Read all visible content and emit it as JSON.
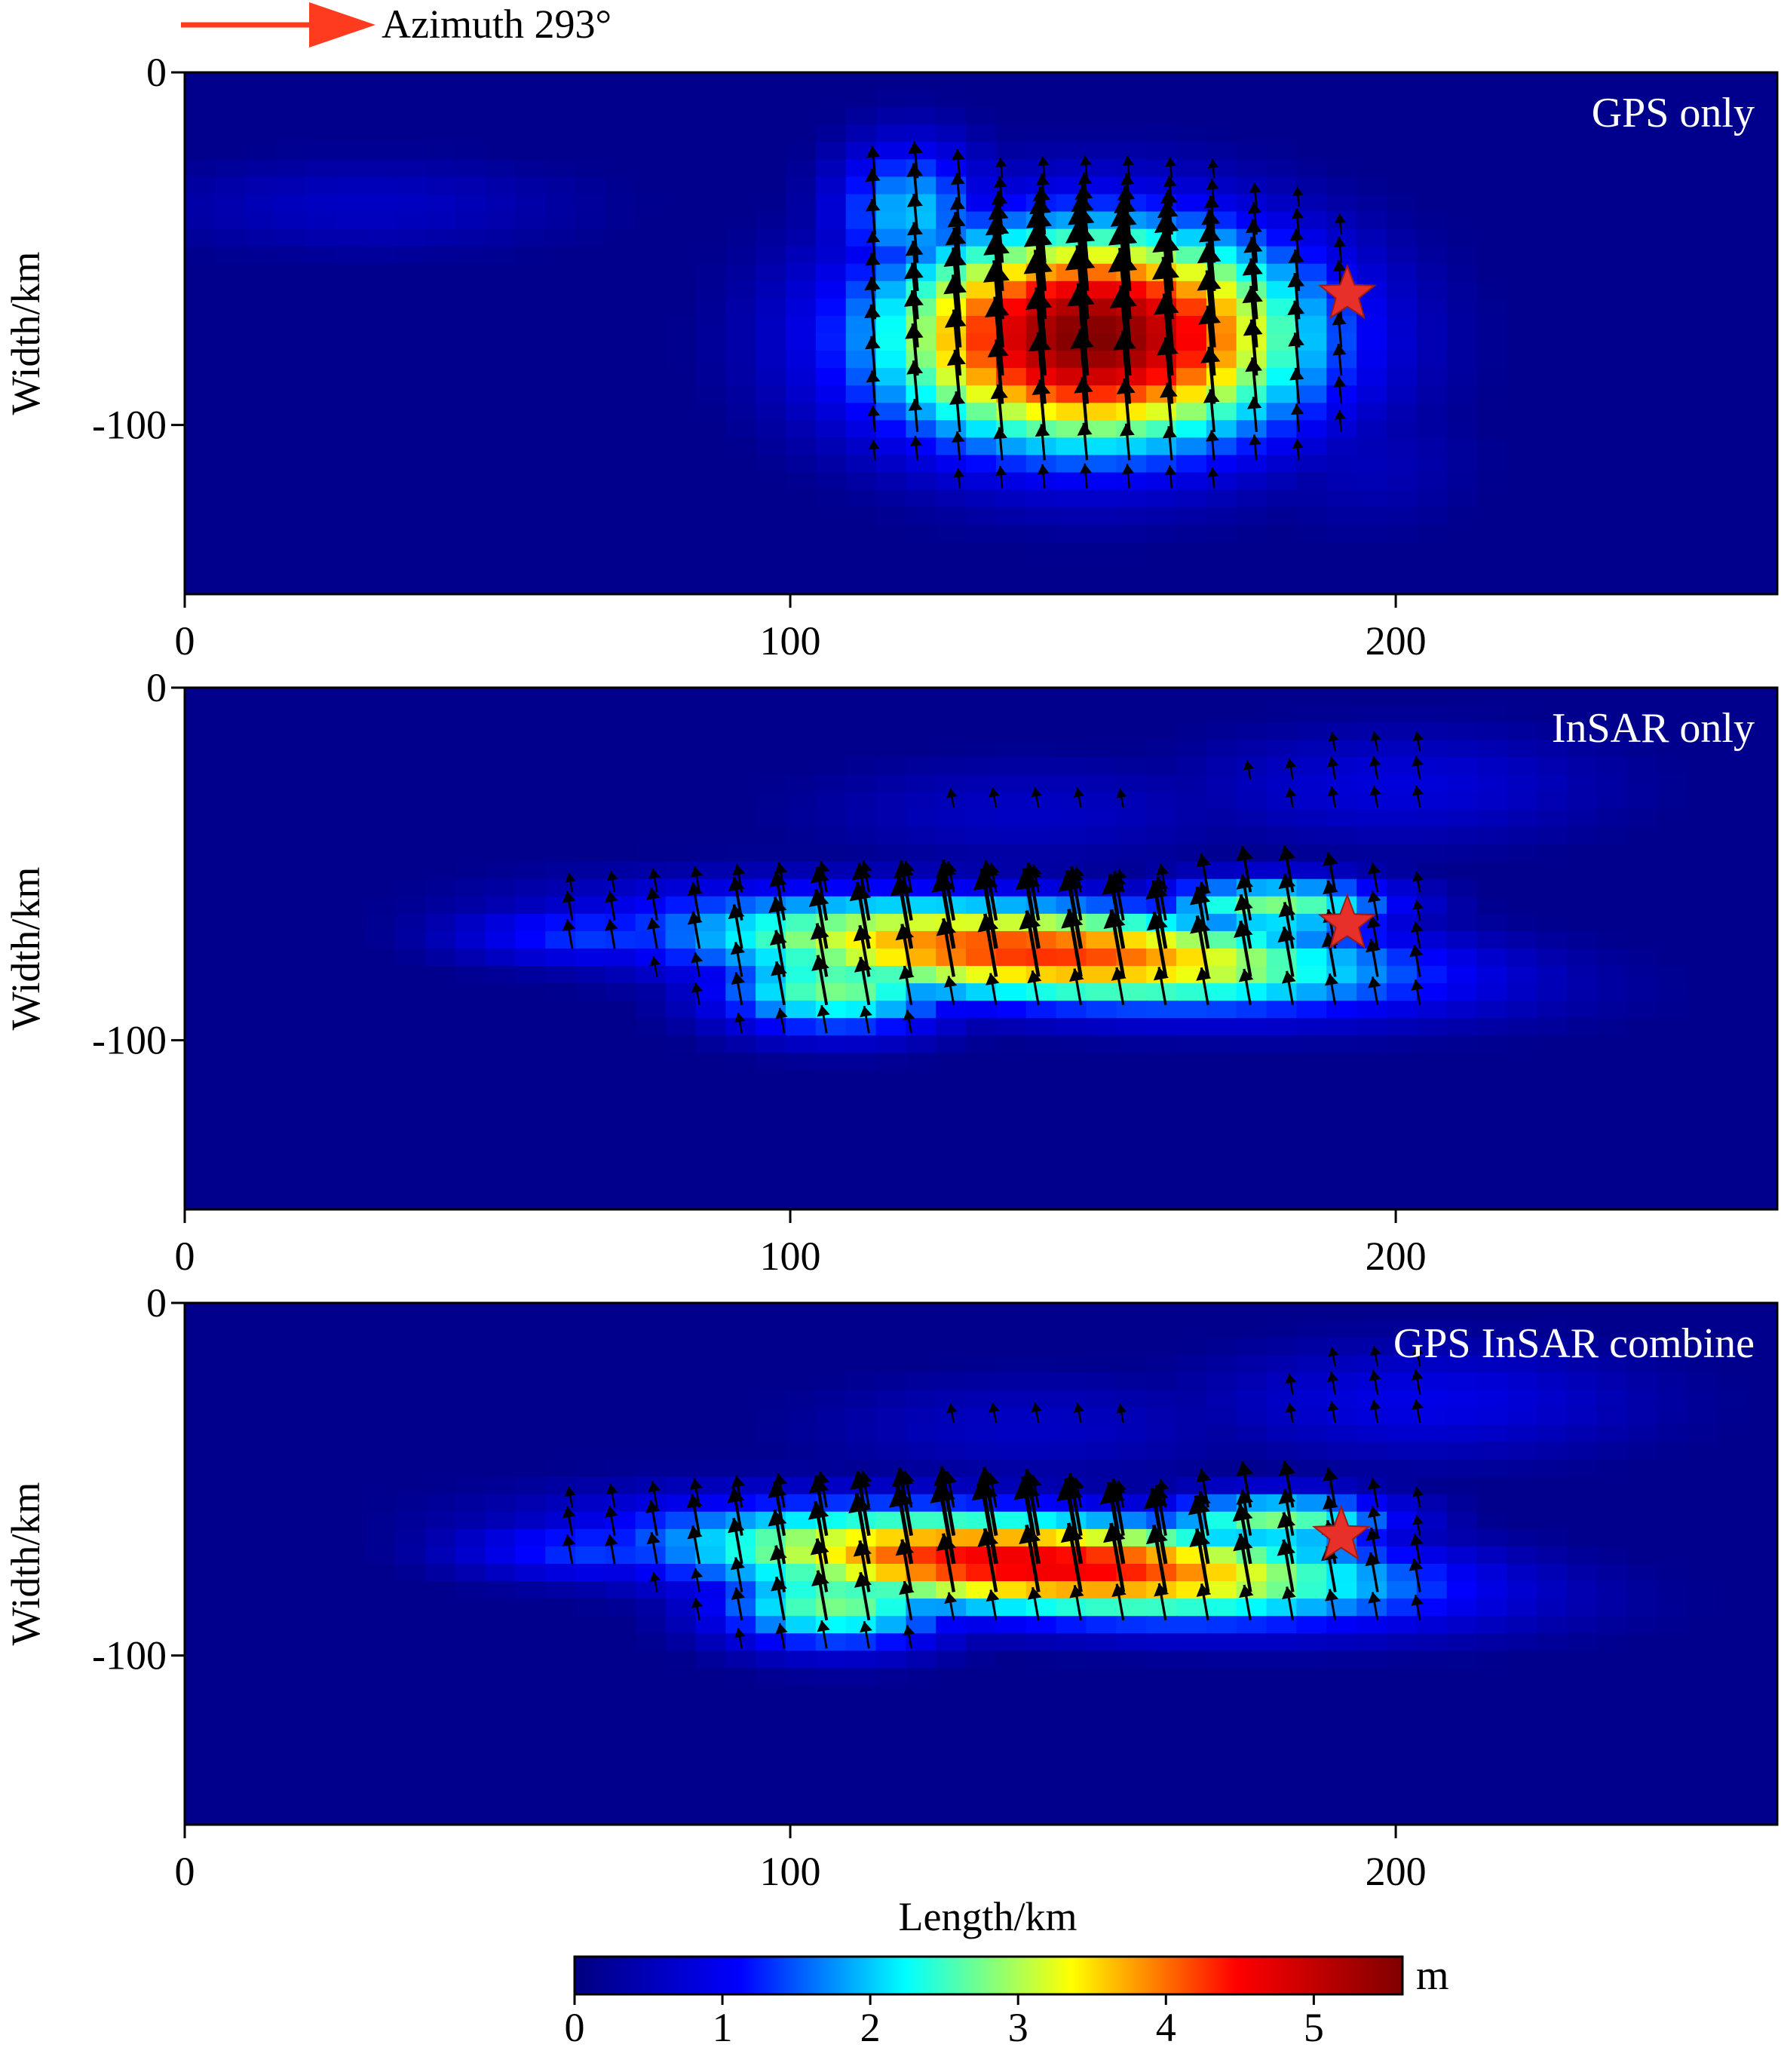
{
  "figure": {
    "azimuth_label": "Azimuth 293°",
    "x_label": "Length/km",
    "colorbar": {
      "unit": "m",
      "min": 0,
      "max": 5.6,
      "ticks": [
        0,
        1,
        2,
        3,
        4,
        5
      ],
      "colormap": [
        "#00007f",
        "#0000ff",
        "#00ffff",
        "#ffff00",
        "#ff0000",
        "#7f0000"
      ]
    },
    "colors": {
      "background": "#00008b",
      "arrow": "#000000",
      "star": "#e8302a",
      "azimuth_arrow": "#ff3b1f"
    }
  },
  "chart_data": [
    {
      "type": "heatmap",
      "title": "GPS only",
      "xlabel": "",
      "ylabel": "Width/km",
      "xlim": [
        0,
        263
      ],
      "ylim": [
        -148,
        0
      ],
      "xticks": [
        0,
        100,
        200
      ],
      "yticks": [
        0,
        -100
      ],
      "epicenter": [
        192,
        -63
      ],
      "slip_patches": [
        {
          "x": 150,
          "y": -75,
          "rx": 37,
          "ry": 33,
          "peak": 5.6,
          "rot": 0
        },
        {
          "x": 120,
          "y": -40,
          "rx": 14,
          "ry": 22,
          "peak": 2.0,
          "rot": 0
        },
        {
          "x": 30,
          "y": -38,
          "rx": 40,
          "ry": 15,
          "peak": 0.6,
          "rot": 0
        },
        {
          "x": 195,
          "y": -110,
          "rx": 20,
          "ry": 22,
          "peak": 0.5,
          "rot": 0
        }
      ],
      "arrow_region": {
        "x0": 114,
        "x1": 191,
        "y0": -30,
        "y1": -130
      },
      "rake_deg": 95
    },
    {
      "type": "heatmap",
      "title": "InSAR only",
      "xlabel": "",
      "ylabel": "Width/km",
      "xlim": [
        0,
        263
      ],
      "ylim": [
        -148,
        0
      ],
      "xticks": [
        0,
        100,
        200
      ],
      "yticks": [
        0,
        -100
      ],
      "epicenter": [
        192,
        -67
      ],
      "slip_patches": [
        {
          "x": 140,
          "y": -75,
          "rx": 62,
          "ry": 15,
          "peak": 4.3,
          "rot": -6
        },
        {
          "x": 108,
          "y": -85,
          "rx": 22,
          "ry": 14,
          "peak": 2.8,
          "rot": 0
        },
        {
          "x": 180,
          "y": -62,
          "rx": 22,
          "ry": 9,
          "peak": 2.8,
          "rot": 0
        },
        {
          "x": 68,
          "y": -70,
          "rx": 26,
          "ry": 10,
          "peak": 1.4,
          "rot": 0
        },
        {
          "x": 200,
          "y": -28,
          "rx": 38,
          "ry": 18,
          "peak": 0.8,
          "rot": 0
        },
        {
          "x": 140,
          "y": -35,
          "rx": 40,
          "ry": 16,
          "peak": 0.6,
          "rot": 0
        }
      ],
      "arrow_region": {
        "x0": 64,
        "x1": 210,
        "y0": -10,
        "y1": -135
      },
      "rake_deg": 100
    },
    {
      "type": "heatmap",
      "title": "GPS InSAR combine",
      "xlabel": "Length/km",
      "ylabel": "Width/km",
      "xlim": [
        0,
        263
      ],
      "ylim": [
        -148,
        0
      ],
      "xticks": [
        0,
        100,
        200
      ],
      "yticks": [
        0,
        -100
      ],
      "epicenter": [
        191,
        -66
      ],
      "slip_patches": [
        {
          "x": 140,
          "y": -74,
          "rx": 62,
          "ry": 15,
          "peak": 4.7,
          "rot": -6
        },
        {
          "x": 108,
          "y": -85,
          "rx": 22,
          "ry": 14,
          "peak": 2.8,
          "rot": 0
        },
        {
          "x": 180,
          "y": -62,
          "rx": 22,
          "ry": 9,
          "peak": 2.8,
          "rot": 0
        },
        {
          "x": 68,
          "y": -70,
          "rx": 26,
          "ry": 10,
          "peak": 1.4,
          "rot": 0
        },
        {
          "x": 205,
          "y": -28,
          "rx": 40,
          "ry": 18,
          "peak": 0.9,
          "rot": 0
        },
        {
          "x": 140,
          "y": -35,
          "rx": 40,
          "ry": 16,
          "peak": 0.6,
          "rot": 0
        }
      ],
      "arrow_region": {
        "x0": 64,
        "x1": 210,
        "y0": -10,
        "y1": -135
      },
      "rake_deg": 100
    }
  ]
}
